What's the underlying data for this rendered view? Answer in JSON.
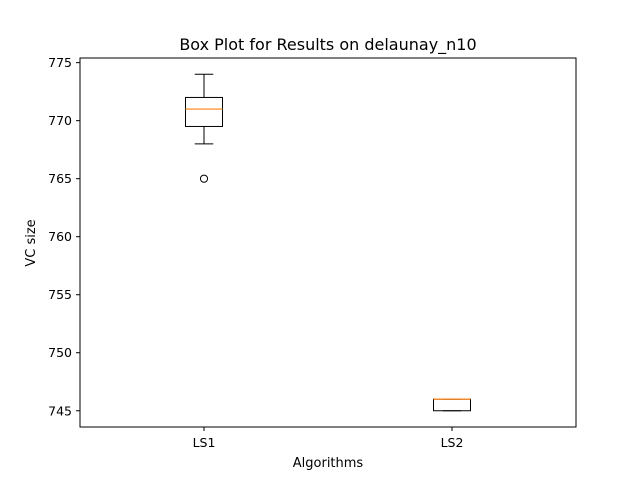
{
  "chart_data": {
    "type": "box",
    "title": "Box Plot for Results on delaunay_n10",
    "xlabel": "Algorithms",
    "ylabel": "VC size",
    "ylim": [
      743.6,
      775.4
    ],
    "yticks": [
      745,
      750,
      755,
      760,
      765,
      770,
      775
    ],
    "grid": false,
    "colors": {
      "box": "#000000",
      "median": "#ff7f0e",
      "background": "#ffffff"
    },
    "categories": [
      "LS1",
      "LS2"
    ],
    "boxes": [
      {
        "label": "LS1",
        "whisker_low": 768,
        "q1": 769.5,
        "median": 771,
        "q3": 772,
        "whisker_high": 774,
        "outliers": [
          765
        ]
      },
      {
        "label": "LS2",
        "whisker_low": 745,
        "q1": 745,
        "median": 746,
        "q3": 746,
        "whisker_high": 746,
        "outliers": []
      }
    ]
  }
}
